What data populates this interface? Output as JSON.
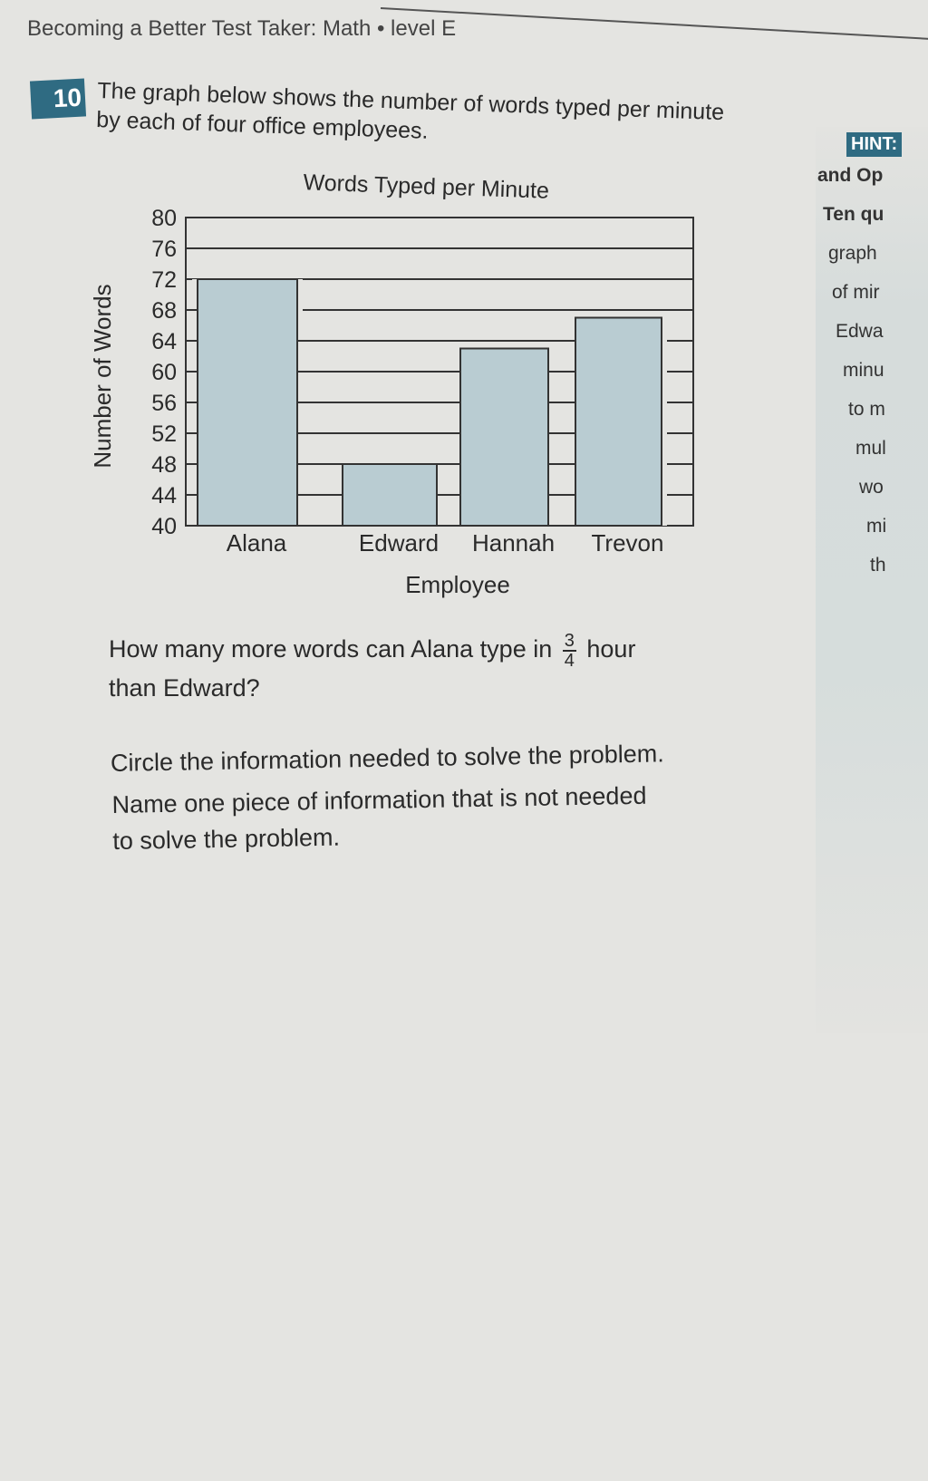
{
  "header": {
    "text": "Becoming a Better Test Taker: Math • level E"
  },
  "question": {
    "number": "10",
    "intro": "The graph below shows the number of words typed per minute by each of four office employees.",
    "prompt_before": "How many more words can Alana type in",
    "fraction_numerator": "3",
    "fraction_denominator": "4",
    "prompt_after": "hour",
    "prompt_line2": "than Edward?",
    "instruction1": "Circle the information needed to solve the problem.",
    "instruction2_line1": "Name one piece of information that is not needed",
    "instruction2_line2": "to solve the problem."
  },
  "sidebar": {
    "hint_label": "HINT:",
    "lines": [
      "and Op",
      "Ten qu",
      "graph",
      "of mir",
      "Edwa",
      "minu",
      "to m",
      "mul",
      "wo",
      "mi",
      "th"
    ]
  },
  "colors": {
    "bar": "#b9ccd2",
    "accent": "#2f6b82"
  },
  "chart_data": {
    "type": "bar",
    "title": "Words Typed per Minute",
    "xlabel": "Employee",
    "ylabel": "Number of Words",
    "categories": [
      "Alana",
      "Edward",
      "Hannah",
      "Trevon"
    ],
    "values": [
      72,
      48,
      63,
      67
    ],
    "ylim": [
      40,
      80
    ],
    "yticks": [
      40,
      44,
      48,
      52,
      56,
      60,
      64,
      68,
      72,
      76,
      80
    ],
    "grid": true
  }
}
